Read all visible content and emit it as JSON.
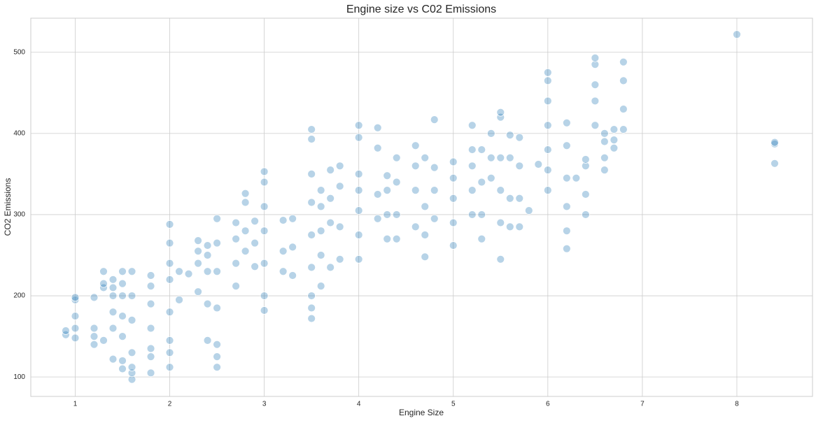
{
  "chart_data": {
    "type": "scatter",
    "title": "Engine size vs C02 Emissions",
    "x_label": "Engine Size",
    "y_label": "CO2 Emissions",
    "color": "#1f77b4",
    "grid": true,
    "xlim": [
      0.53,
      8.8
    ],
    "ylim": [
      76,
      542
    ],
    "xticks": [
      1,
      2,
      3,
      4,
      5,
      6,
      7,
      8
    ],
    "yticks": [
      100,
      200,
      300,
      400,
      500
    ],
    "x": [
      0.9,
      0.9,
      1,
      1,
      1,
      1,
      1,
      1.2,
      1.2,
      1.2,
      1.2,
      1.3,
      1.3,
      1.3,
      1.3,
      1.4,
      1.4,
      1.4,
      1.4,
      1.4,
      1.4,
      1.5,
      1.5,
      1.5,
      1.5,
      1.5,
      1.5,
      1.5,
      1.6,
      1.6,
      1.6,
      1.6,
      1.6,
      1.6,
      1.6,
      1.8,
      1.8,
      1.8,
      1.8,
      1.8,
      1.8,
      1.8,
      2,
      2,
      2,
      2,
      2,
      2,
      2,
      2,
      2.1,
      2.1,
      2.2,
      2.3,
      2.3,
      2.3,
      2.3,
      2.4,
      2.4,
      2.4,
      2.4,
      2.4,
      2.5,
      2.5,
      2.5,
      2.5,
      2.5,
      2.5,
      2.5,
      2.7,
      2.7,
      2.7,
      2.7,
      2.8,
      2.8,
      2.8,
      2.8,
      2.9,
      2.9,
      2.9,
      3,
      3,
      3,
      3,
      3,
      3,
      3,
      3.2,
      3.2,
      3.2,
      3.3,
      3.3,
      3.3,
      3.5,
      3.5,
      3.5,
      3.5,
      3.5,
      3.5,
      3.5,
      3.5,
      3.5,
      3.6,
      3.6,
      3.6,
      3.6,
      3.6,
      3.7,
      3.7,
      3.7,
      3.7,
      3.8,
      3.8,
      3.8,
      3.8,
      4,
      4,
      4,
      4,
      4,
      4,
      4,
      4.2,
      4.2,
      4.2,
      4.2,
      4.3,
      4.3,
      4.3,
      4.3,
      4.4,
      4.4,
      4.4,
      4.4,
      4.6,
      4.6,
      4.6,
      4.6,
      4.7,
      4.7,
      4.7,
      4.7,
      4.8,
      4.8,
      4.8,
      4.8,
      5,
      5,
      5,
      5,
      5,
      5.2,
      5.2,
      5.2,
      5.2,
      5.2,
      5.3,
      5.3,
      5.3,
      5.3,
      5.4,
      5.4,
      5.4,
      5.5,
      5.5,
      5.5,
      5.5,
      5.5,
      5.5,
      5.6,
      5.6,
      5.6,
      5.6,
      5.7,
      5.7,
      5.7,
      5.7,
      5.8,
      5.9,
      6,
      6,
      6,
      6,
      6,
      6,
      6,
      6.2,
      6.2,
      6.2,
      6.2,
      6.2,
      6.2,
      6.3,
      6.4,
      6.4,
      6.4,
      6.4,
      6.5,
      6.5,
      6.5,
      6.5,
      6.5,
      6.6,
      6.6,
      6.6,
      6.6,
      6.7,
      6.7,
      6.7,
      6.8,
      6.8,
      6.8,
      6.8,
      8,
      8.4,
      8.4,
      8.4
    ],
    "y": [
      152,
      157,
      148,
      160,
      175,
      195,
      198,
      140,
      150,
      160,
      198,
      145,
      210,
      215,
      230,
      122,
      160,
      180,
      200,
      210,
      220,
      110,
      120,
      150,
      175,
      200,
      215,
      230,
      97,
      105,
      112,
      130,
      170,
      200,
      230,
      105,
      125,
      135,
      160,
      190,
      212,
      225,
      112,
      130,
      145,
      180,
      220,
      240,
      265,
      288,
      195,
      230,
      227,
      205,
      240,
      255,
      268,
      145,
      190,
      230,
      250,
      262,
      112,
      125,
      140,
      185,
      230,
      265,
      295,
      212,
      240,
      270,
      290,
      255,
      280,
      315,
      326,
      236,
      265,
      292,
      182,
      200,
      240,
      280,
      310,
      340,
      353,
      230,
      255,
      293,
      225,
      260,
      295,
      172,
      185,
      200,
      235,
      275,
      315,
      350,
      393,
      405,
      212,
      250,
      280,
      310,
      330,
      235,
      290,
      320,
      355,
      245,
      285,
      335,
      360,
      245,
      275,
      305,
      330,
      350,
      395,
      410,
      295,
      325,
      382,
      407,
      270,
      300,
      330,
      348,
      270,
      300,
      340,
      370,
      285,
      330,
      360,
      385,
      248,
      275,
      310,
      370,
      295,
      330,
      358,
      417,
      262,
      290,
      320,
      345,
      365,
      300,
      330,
      360,
      380,
      410,
      270,
      300,
      340,
      380,
      345,
      370,
      400,
      245,
      290,
      330,
      370,
      420,
      426,
      285,
      320,
      370,
      398,
      285,
      320,
      360,
      395,
      305,
      362,
      330,
      355,
      380,
      410,
      440,
      465,
      475,
      258,
      280,
      310,
      345,
      385,
      413,
      345,
      300,
      325,
      360,
      368,
      410,
      440,
      460,
      485,
      493,
      355,
      370,
      390,
      400,
      382,
      392,
      405,
      405,
      430,
      465,
      488,
      522,
      363,
      387,
      389
    ]
  }
}
